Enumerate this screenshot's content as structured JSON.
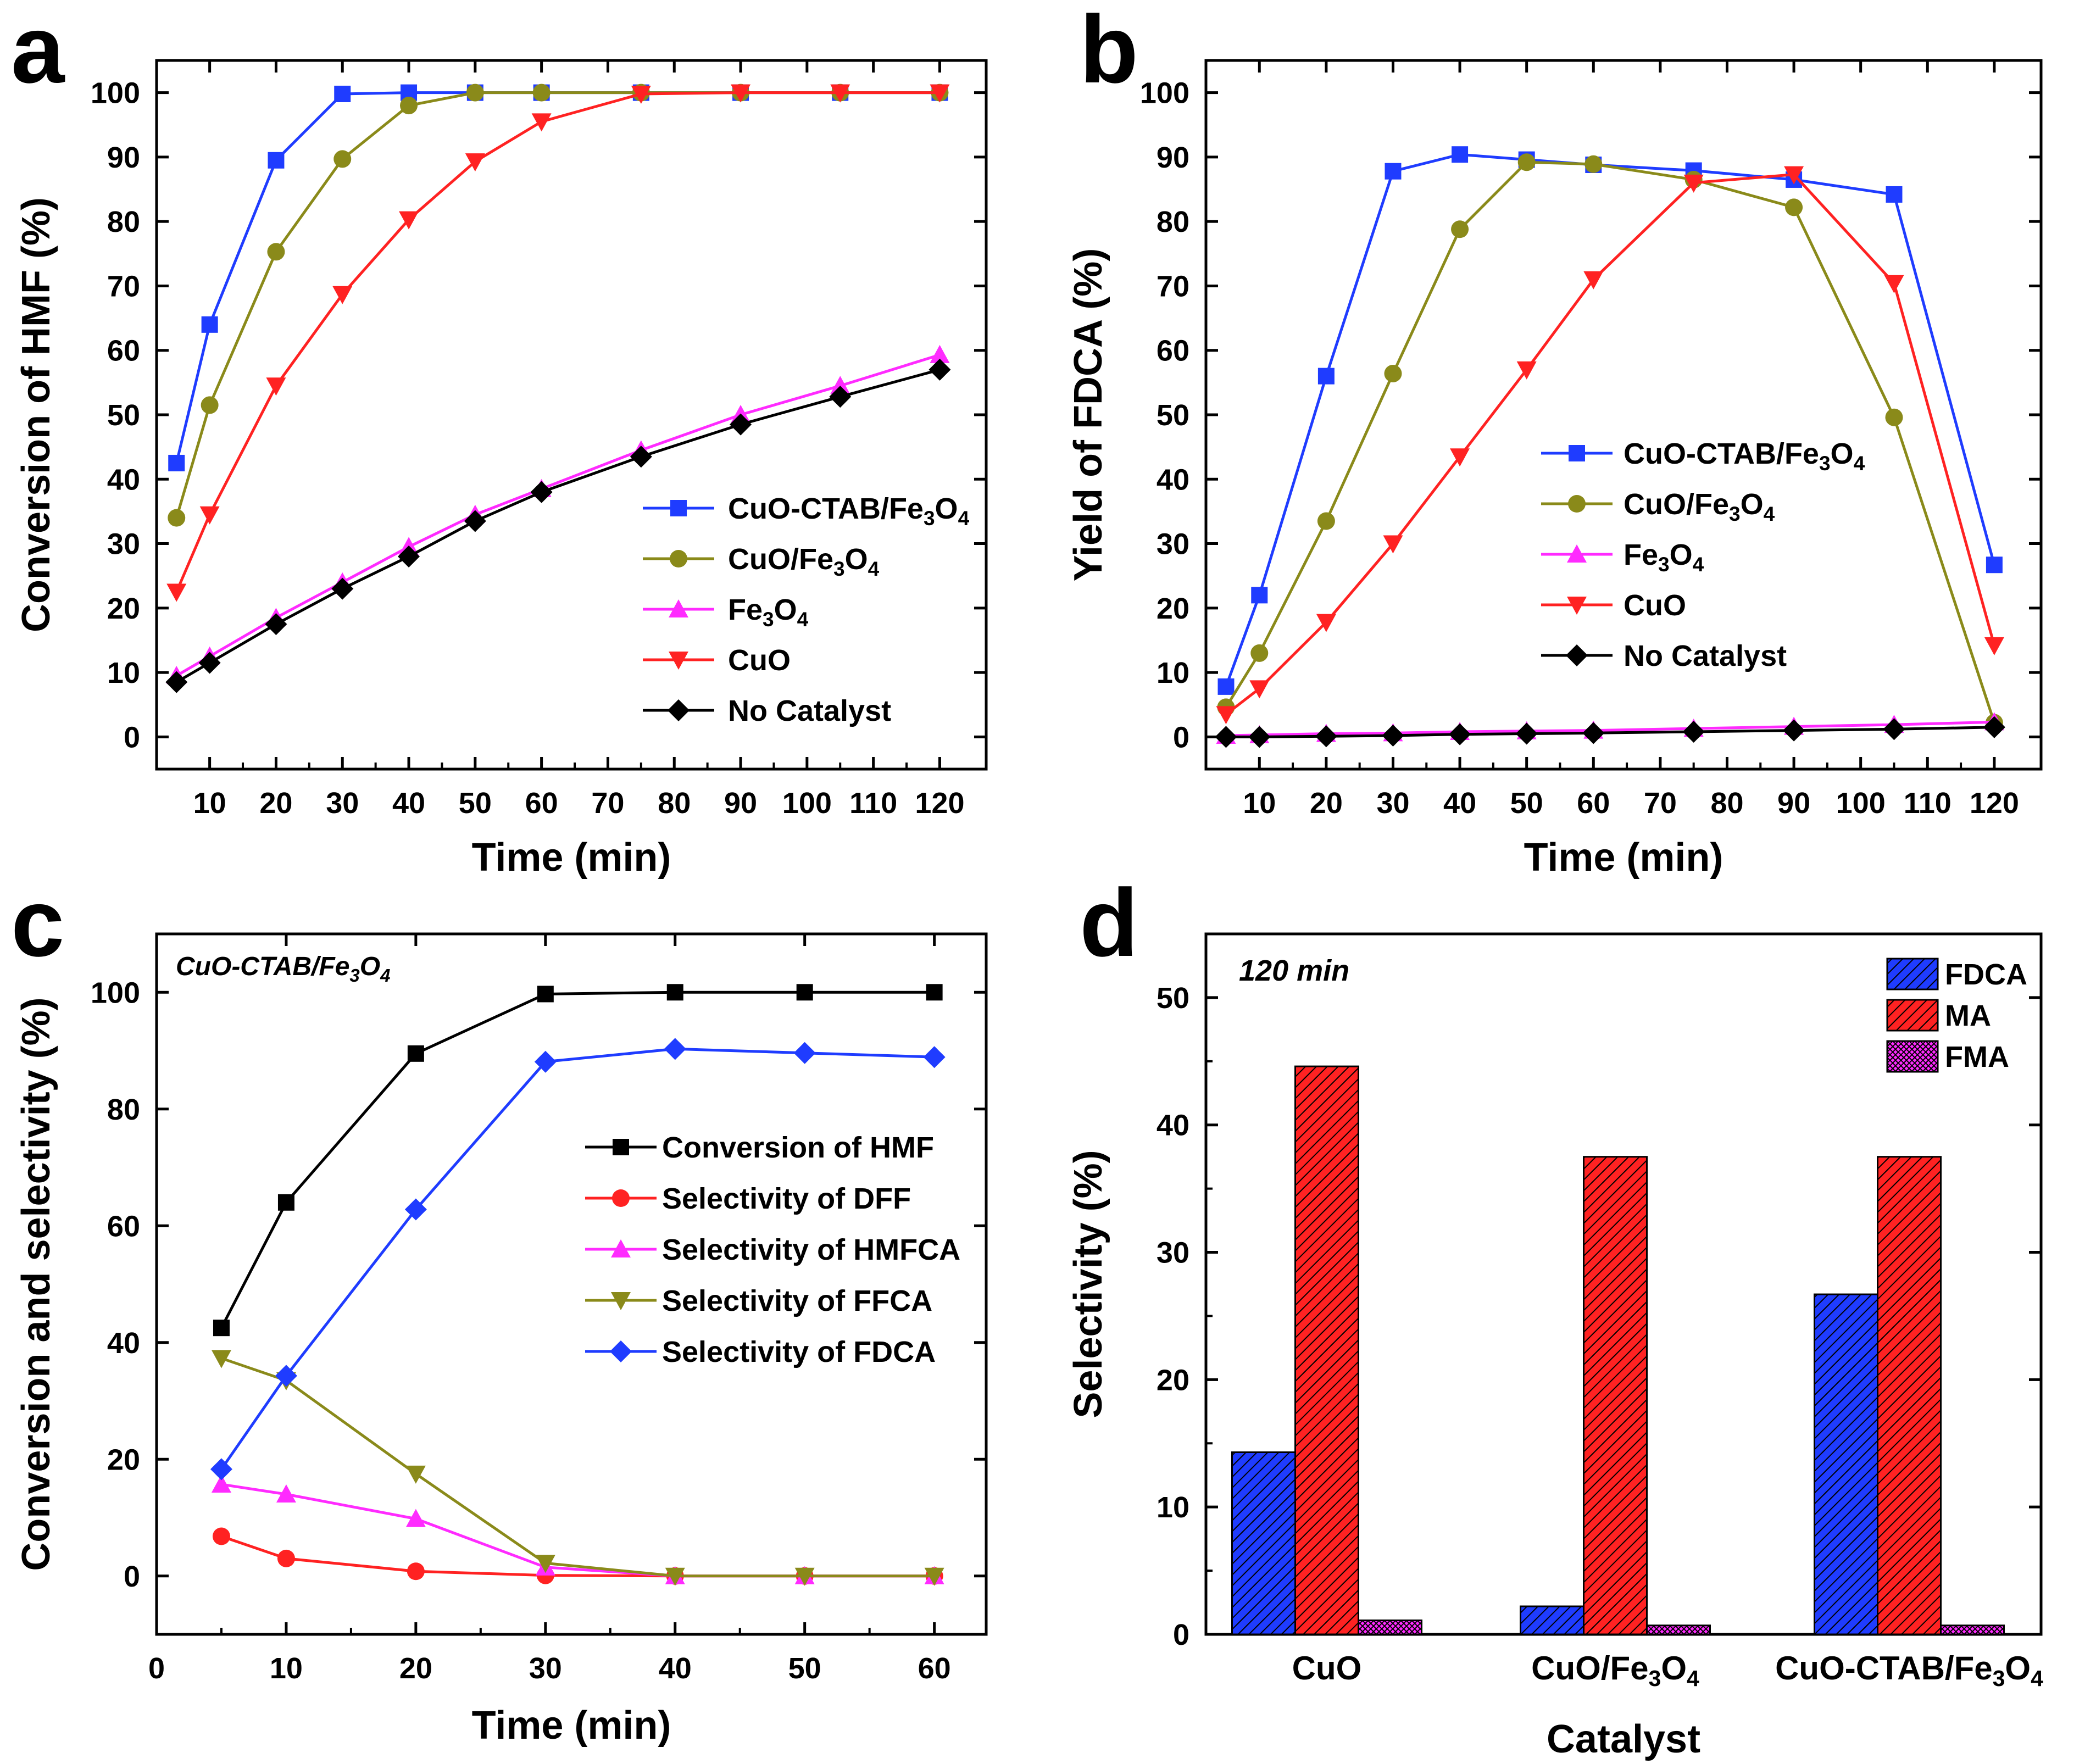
{
  "figure_colors": {
    "cuo_ctab": "#1f3cff",
    "cuo_fe3o4": "#8a8a1a",
    "fe3o4": "#ff2bff",
    "cuo": "#ff2222",
    "none": "#000000",
    "black": "#000000",
    "blue": "#1f3cff",
    "red": "#ff2222",
    "magenta": "#ff2bff",
    "olive": "#8a8a1a"
  },
  "chart_data": [
    {
      "panel": "a",
      "type": "line",
      "xlabel": "Time (min)",
      "ylabel": "Conversion of HMF (%)",
      "xlim": [
        2,
        127
      ],
      "ylim": [
        -5,
        105
      ],
      "xticks": [
        10,
        20,
        30,
        40,
        50,
        60,
        70,
        80,
        90,
        100,
        110,
        120
      ],
      "yticks": [
        0,
        10,
        20,
        30,
        40,
        50,
        60,
        70,
        80,
        90,
        100
      ],
      "x": [
        5,
        10,
        20,
        30,
        40,
        50,
        60,
        75,
        90,
        105,
        120
      ],
      "legend_position": "lower-right",
      "series": [
        {
          "name": "CuO-CTAB/Fe3O4",
          "label": [
            "CuO-CTAB/Fe",
            "3",
            "O",
            "4"
          ],
          "marker": "square",
          "color": "cuo_ctab",
          "values": [
            42.5,
            64,
            89.5,
            99.8,
            100,
            100,
            100,
            100,
            100,
            100,
            100
          ]
        },
        {
          "name": "CuO/Fe3O4",
          "label": [
            "CuO/Fe",
            "3",
            "O",
            "4"
          ],
          "marker": "circle",
          "color": "cuo_fe3o4",
          "values": [
            34,
            51.5,
            75.3,
            89.7,
            98,
            100,
            100,
            100,
            100,
            100,
            100
          ]
        },
        {
          "name": "Fe3O4",
          "label": [
            "Fe",
            "3",
            "O",
            "4"
          ],
          "marker": "triangle-up",
          "color": "fe3o4",
          "values": [
            9.5,
            12.5,
            18.5,
            24,
            29.5,
            34.5,
            38.5,
            44.5,
            50,
            54.5,
            59.3
          ]
        },
        {
          "name": "CuO",
          "label": [
            "CuO"
          ],
          "marker": "triangle-down",
          "color": "cuo",
          "values": [
            22.5,
            34.5,
            54.5,
            68.7,
            80.3,
            89.3,
            95.5,
            99.8,
            100,
            100,
            100
          ]
        },
        {
          "name": "No Catalyst",
          "label": [
            "No Catalyst"
          ],
          "marker": "diamond",
          "color": "none",
          "values": [
            8.5,
            11.5,
            17.5,
            23,
            28,
            33.5,
            38,
            43.5,
            48.5,
            52.8,
            57
          ]
        }
      ]
    },
    {
      "panel": "b",
      "type": "line",
      "xlabel": "Time (min)",
      "ylabel": "Yield of FDCA (%)",
      "xlim": [
        2,
        127
      ],
      "ylim": [
        -5,
        105
      ],
      "xticks": [
        10,
        20,
        30,
        40,
        50,
        60,
        70,
        80,
        90,
        100,
        110,
        120
      ],
      "yticks": [
        0,
        10,
        20,
        30,
        40,
        50,
        60,
        70,
        80,
        90,
        100
      ],
      "x": [
        5,
        10,
        20,
        30,
        40,
        50,
        60,
        75,
        90,
        105,
        120
      ],
      "legend_position": "center-right",
      "series": [
        {
          "name": "CuO-CTAB/Fe3O4",
          "label": [
            "CuO-CTAB/Fe",
            "3",
            "O",
            "4"
          ],
          "marker": "square",
          "color": "cuo_ctab",
          "values": [
            7.8,
            22,
            56,
            87.8,
            90.4,
            89.6,
            88.8,
            87.9,
            86.5,
            84.2,
            26.7
          ]
        },
        {
          "name": "CuO/Fe3O4",
          "label": [
            "CuO/Fe",
            "3",
            "O",
            "4"
          ],
          "marker": "circle",
          "color": "cuo_fe3o4",
          "values": [
            4.6,
            13,
            33.5,
            56.4,
            78.8,
            89.2,
            88.9,
            86.5,
            82.2,
            49.6,
            2.2
          ]
        },
        {
          "name": "Fe3O4",
          "label": [
            "Fe",
            "3",
            "O",
            "4"
          ],
          "marker": "triangle-up",
          "color": "fe3o4",
          "values": [
            0.2,
            0.3,
            0.5,
            0.6,
            0.8,
            0.9,
            1.0,
            1.3,
            1.6,
            1.9,
            2.3
          ]
        },
        {
          "name": "CuO",
          "label": [
            "CuO"
          ],
          "marker": "triangle-down",
          "color": "cuo",
          "values": [
            3.5,
            7.5,
            17.8,
            30,
            43.5,
            57,
            71,
            86,
            87.3,
            70.4,
            14.2
          ]
        },
        {
          "name": "No Catalyst",
          "label": [
            "No Catalyst"
          ],
          "marker": "diamond",
          "color": "none",
          "values": [
            0,
            0,
            0.1,
            0.2,
            0.4,
            0.5,
            0.6,
            0.8,
            1.0,
            1.2,
            1.5
          ]
        }
      ]
    },
    {
      "panel": "c",
      "type": "line",
      "xlabel": "Time (min)",
      "ylabel": "Conversion and selectivity (%)",
      "annotation": [
        "CuO-CTAB/Fe",
        "3",
        "O",
        "4"
      ],
      "xlim": [
        0,
        64
      ],
      "ylim": [
        -10,
        110
      ],
      "xticks": [
        0,
        10,
        20,
        30,
        40,
        50,
        60
      ],
      "yticks": [
        0,
        20,
        40,
        60,
        80,
        100
      ],
      "x": [
        5,
        10,
        20,
        30,
        40,
        50,
        60
      ],
      "legend_position": "center-right",
      "series": [
        {
          "name": "Conversion of HMF",
          "label": [
            "Conversion of HMF"
          ],
          "marker": "square",
          "color": "black",
          "values": [
            42.5,
            64,
            89.5,
            99.7,
            100,
            100,
            100
          ]
        },
        {
          "name": "Selectivity of DFF",
          "label": [
            "Selectivity of DFF"
          ],
          "marker": "circle",
          "color": "red",
          "values": [
            6.8,
            3,
            0.8,
            0.1,
            0,
            0,
            0
          ]
        },
        {
          "name": "Selectivity of HMFCA",
          "label": [
            "Selectivity of HMFCA"
          ],
          "marker": "triangle-up",
          "color": "magenta",
          "values": [
            15.7,
            14,
            9.8,
            1.5,
            0,
            0,
            0
          ]
        },
        {
          "name": "Selectivity of FFCA",
          "label": [
            "Selectivity of FFCA"
          ],
          "marker": "triangle-down",
          "color": "olive",
          "values": [
            37.3,
            33.5,
            17.5,
            2.2,
            0,
            0,
            0
          ]
        },
        {
          "name": "Selectivity of FDCA",
          "label": [
            "Selectivity of FDCA"
          ],
          "marker": "diamond",
          "color": "blue",
          "values": [
            18.3,
            34.3,
            62.8,
            88.1,
            90.3,
            89.6,
            88.9
          ]
        }
      ]
    },
    {
      "panel": "d",
      "type": "bar",
      "xlabel": "Catalyst",
      "ylabel": "Selectivity (%)",
      "annotation": "120 min",
      "ylim": [
        0,
        55
      ],
      "yticks": [
        0,
        10,
        20,
        30,
        40,
        50
      ],
      "categories": [
        [
          "CuO"
        ],
        [
          "CuO/Fe",
          "3",
          "O",
          "4"
        ],
        [
          "CuO-CTAB/Fe",
          "3",
          "O",
          "4"
        ]
      ],
      "legend_position": "top-right",
      "series": [
        {
          "name": "FDCA",
          "color": "blue",
          "pattern": "hatch-blue",
          "values": [
            14.3,
            2.2,
            26.7
          ]
        },
        {
          "name": "MA",
          "color": "red",
          "pattern": "hatch-red",
          "values": [
            44.6,
            37.5,
            37.5
          ]
        },
        {
          "name": "FMA",
          "color": "magenta",
          "pattern": "cross-magenta",
          "values": [
            1.1,
            0.7,
            0.7
          ]
        }
      ]
    }
  ],
  "panel_labels": [
    "a",
    "b",
    "c",
    "d"
  ]
}
